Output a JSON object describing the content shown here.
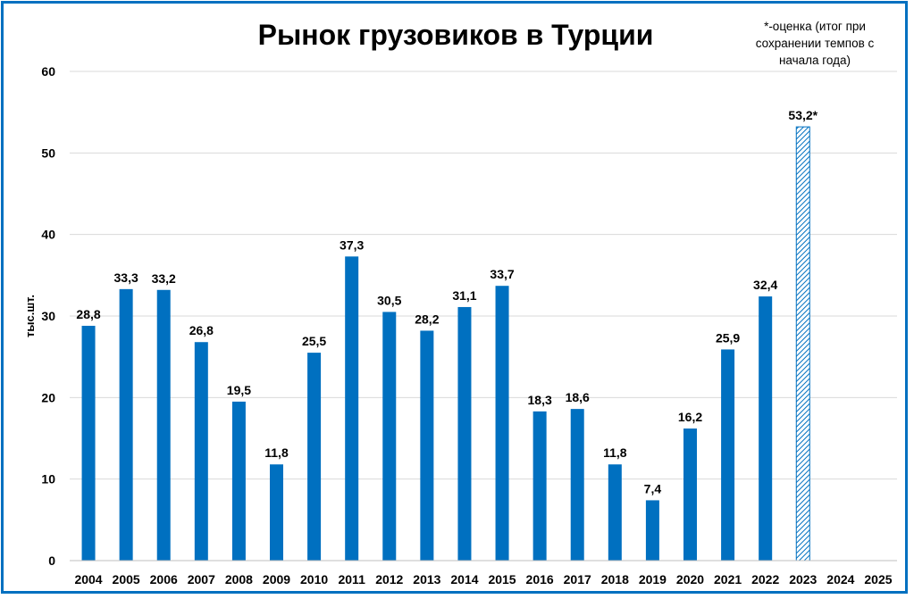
{
  "chart_data": {
    "type": "bar",
    "title": "Рынок грузовиков в Турции",
    "ylabel": "тыс.шт.",
    "note_lines": [
      "*-оценка (итог при",
      "сохранении темпов с",
      "начала года)"
    ],
    "ylim": [
      0,
      60
    ],
    "yticks": [
      "0",
      "10",
      "20",
      "30",
      "40",
      "50",
      "60"
    ],
    "grid": true,
    "categories": [
      "2004",
      "2005",
      "2006",
      "2007",
      "2008",
      "2009",
      "2010",
      "2011",
      "2012",
      "2013",
      "2014",
      "2015",
      "2016",
      "2017",
      "2018",
      "2019",
      "2020",
      "2021",
      "2022",
      "2023",
      "2024",
      "2025"
    ],
    "values": [
      28.8,
      33.3,
      33.2,
      26.8,
      19.5,
      11.8,
      25.5,
      37.3,
      30.5,
      28.2,
      31.1,
      33.7,
      18.3,
      18.6,
      11.8,
      7.4,
      16.2,
      25.9,
      32.4,
      53.2,
      null,
      null
    ],
    "labels": [
      "28,8",
      "33,3",
      "33,2",
      "26,8",
      "19,5",
      "11,8",
      "25,5",
      "37,3",
      "30,5",
      "28,2",
      "31,1",
      "33,7",
      "18,3",
      "18,6",
      "11,8",
      "7,4",
      "16,2",
      "25,9",
      "32,4",
      "53,2*",
      "",
      ""
    ],
    "estimated": [
      "2023"
    ],
    "colors": {
      "bar": "#0070c0",
      "estimate": "#0070c0",
      "grid": "#d9d9d9",
      "frame": "#0070c0"
    }
  }
}
